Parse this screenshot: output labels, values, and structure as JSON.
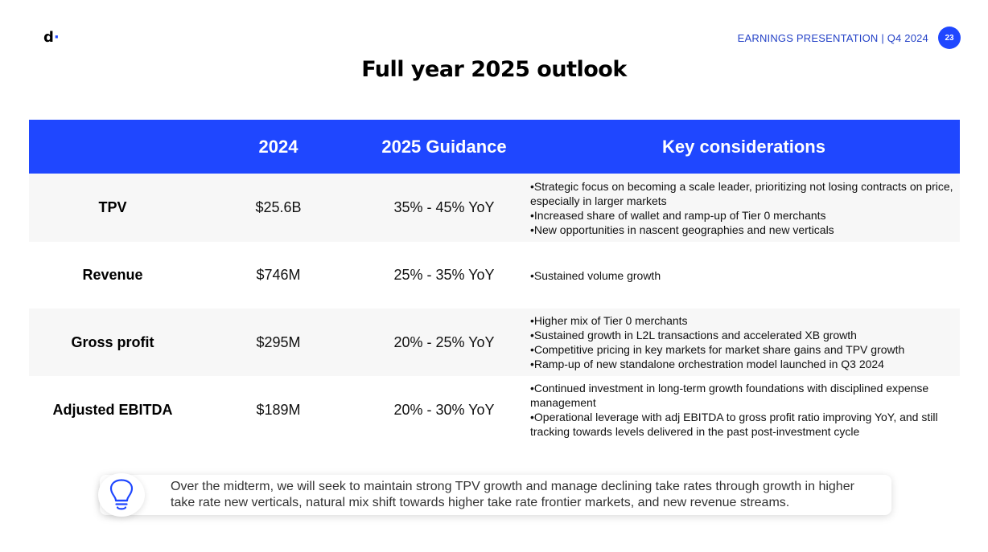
{
  "logo": {
    "letter": "d",
    "dot": "·"
  },
  "header": {
    "text": "EARNINGS PRESENTATION | Q4 2024",
    "page_number": "23"
  },
  "title": "Full year 2025 outlook",
  "table": {
    "headers": [
      "",
      "2024",
      "2025 Guidance",
      "Key considerations"
    ],
    "rows": [
      {
        "metric": "TPV",
        "value_2024": "$25.6B",
        "guidance_2025": "35% - 45% YoY",
        "considerations": [
          "Strategic focus on becoming a scale leader, prioritizing not losing contracts on price, especially in larger markets",
          "Increased share of wallet and ramp-up of Tier 0 merchants",
          "New opportunities in nascent geographies and new verticals"
        ]
      },
      {
        "metric": "Revenue",
        "value_2024": "$746M",
        "guidance_2025": "25% - 35% YoY",
        "considerations": [
          "Sustained volume growth"
        ]
      },
      {
        "metric": "Gross profit",
        "value_2024": "$295M",
        "guidance_2025": "20% - 25% YoY",
        "considerations": [
          "Higher mix of Tier 0 merchants",
          "Sustained growth in L2L transactions and accelerated XB growth",
          "Competitive pricing in key markets for market share gains and TPV growth",
          "Ramp-up of new standalone orchestration model launched in Q3 2024"
        ]
      },
      {
        "metric": "Adjusted EBITDA",
        "value_2024": "$189M",
        "guidance_2025": "20% - 30% YoY",
        "considerations": [
          "Continued investment in long-term growth foundations with disciplined expense management",
          "Operational leverage with adj EBITDA to gross profit ratio improving YoY, and still tracking towards levels delivered in the past post-investment cycle"
        ]
      }
    ]
  },
  "note": {
    "icon": "lightbulb-icon",
    "text": "Over the midterm, we will seek to maintain strong TPV growth and manage declining take rates through growth in higher take rate new verticals, natural mix shift towards higher take rate frontier markets, and new revenue streams."
  },
  "colors": {
    "accent": "#1f47ff",
    "row_shade": "#f7f7f7",
    "header_text": "#2442c7"
  }
}
